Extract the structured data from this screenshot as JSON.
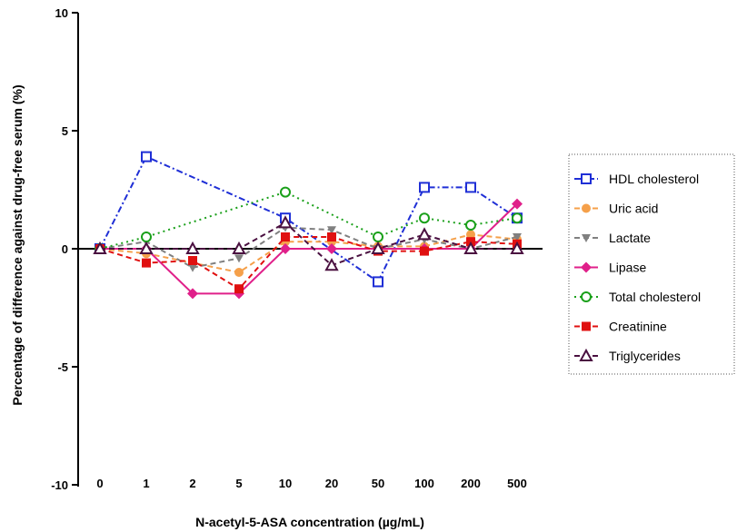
{
  "chart_data": {
    "type": "line",
    "xlabel": "N-acetyl-5-ASA concentration (µg/mL)",
    "ylabel": "Percentage of difference against drug-free serum (%)",
    "categories": [
      "0",
      "1",
      "2",
      "5",
      "10",
      "20",
      "50",
      "100",
      "200",
      "500"
    ],
    "ylim": [
      -10,
      10
    ],
    "yticks": [
      "10",
      "5",
      "0",
      "-5",
      "-10"
    ],
    "yticks_values": [
      10,
      5,
      0,
      -5,
      -10
    ],
    "grid": false,
    "legend_position": "right",
    "series": [
      {
        "name": "HDL cholesterol",
        "color": "#1f2fd6",
        "marker": "square-open",
        "dash": "dash-dot",
        "values": [
          0,
          3.9,
          null,
          null,
          1.3,
          null,
          -1.4,
          2.6,
          2.6,
          1.3
        ]
      },
      {
        "name": "Uric acid",
        "color": "#f5a04a",
        "marker": "circle-filled",
        "dash": "dash",
        "values": [
          0,
          -0.2,
          -0.6,
          -1.0,
          0.3,
          0.3,
          0.1,
          0.1,
          0.6,
          0.4
        ]
      },
      {
        "name": "Lactate",
        "color": "#808080",
        "marker": "triangle-down",
        "dash": "dash",
        "values": [
          0,
          0.3,
          -0.8,
          -0.4,
          0.9,
          0.8,
          0.0,
          0.4,
          0.0,
          0.5
        ]
      },
      {
        "name": "Lipase",
        "color": "#e0208a",
        "marker": "diamond-filled",
        "dash": "solid",
        "values": [
          0,
          0.0,
          -1.9,
          -1.9,
          0.0,
          0.0,
          0.0,
          0.0,
          0.0,
          1.9
        ]
      },
      {
        "name": "Total cholesterol",
        "color": "#1aa01a",
        "marker": "circle-open",
        "dash": "dot",
        "values": [
          0,
          0.5,
          null,
          null,
          2.4,
          null,
          0.5,
          1.3,
          1.0,
          1.3
        ]
      },
      {
        "name": "Creatinine",
        "color": "#e01010",
        "marker": "square-filled",
        "dash": "dash",
        "values": [
          0,
          -0.6,
          -0.5,
          -1.7,
          0.5,
          0.5,
          -0.1,
          -0.1,
          0.3,
          0.2
        ]
      },
      {
        "name": "Triglycerides",
        "color": "#4a1040",
        "marker": "triangle-open",
        "dash": "dash",
        "values": [
          0,
          0.0,
          0.0,
          0.0,
          1.1,
          -0.7,
          0.0,
          0.6,
          0.0,
          0.0
        ]
      }
    ]
  }
}
